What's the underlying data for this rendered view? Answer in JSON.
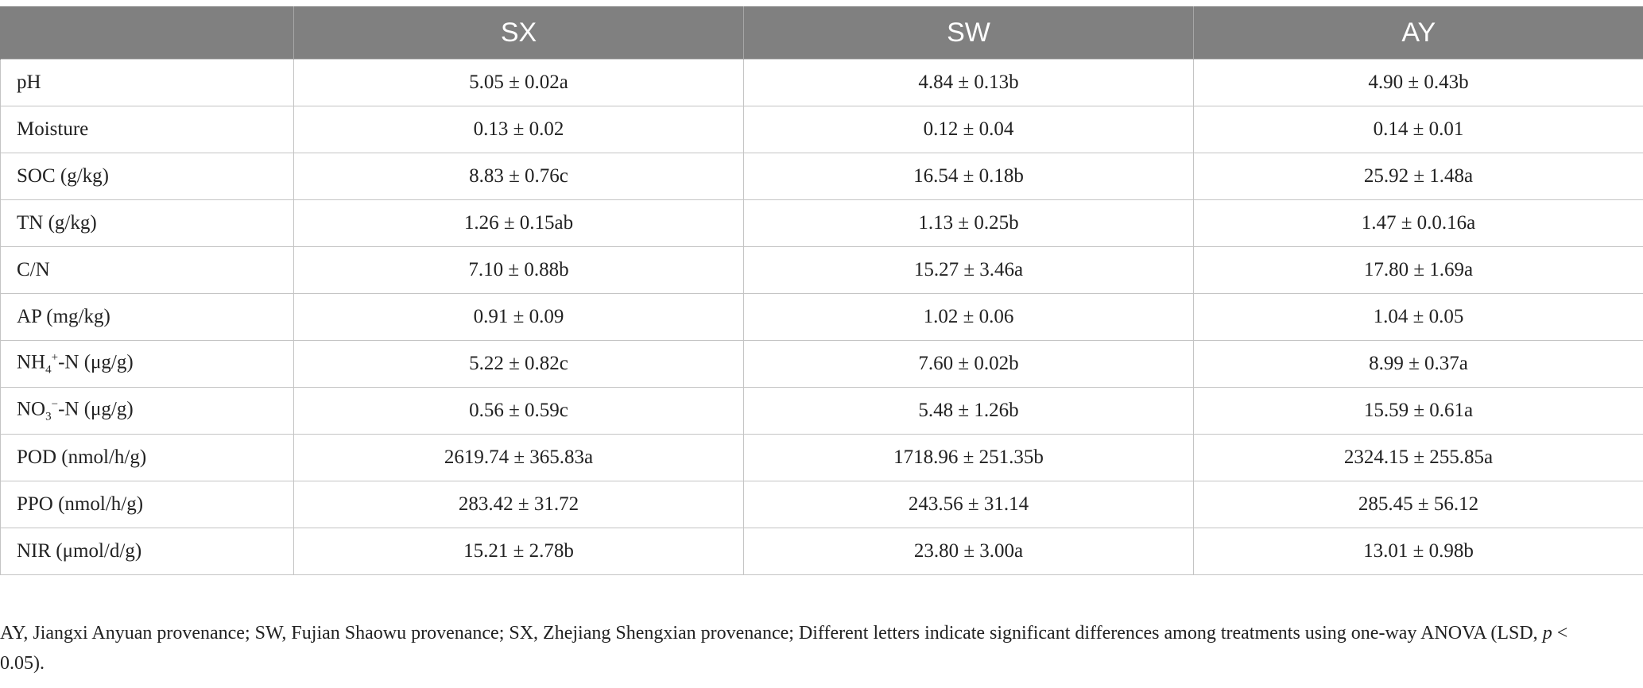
{
  "table": {
    "headers": [
      "",
      "SX",
      "SW",
      "AY"
    ],
    "rows": [
      {
        "label": "pH",
        "values": [
          "5.05 ± 0.02a",
          "4.84 ± 0.13b",
          "4.90 ± 0.43b"
        ]
      },
      {
        "label": "Moisture",
        "values": [
          "0.13 ± 0.02",
          "0.12 ± 0.04",
          "0.14 ± 0.01"
        ]
      },
      {
        "label": "SOC (g/kg)",
        "values": [
          "8.83 ± 0.76c",
          "16.54 ± 0.18b",
          "25.92 ± 1.48a"
        ]
      },
      {
        "label": "TN (g/kg)",
        "values": [
          "1.26 ± 0.15ab",
          "1.13 ± 0.25b",
          "1.47 ± 0.0.16a"
        ]
      },
      {
        "label": "C/N",
        "values": [
          "7.10 ± 0.88b",
          "15.27 ± 3.46a",
          "17.80 ± 1.69a"
        ]
      },
      {
        "label": "AP (mg/kg)",
        "values": [
          "0.91 ± 0.09",
          "1.02 ± 0.06",
          "1.04 ± 0.05"
        ]
      },
      {
        "label_parts": {
          "pre": "NH",
          "sub": "4",
          "sup": "+",
          "post": "-N (μg/g)"
        },
        "values": [
          "5.22 ± 0.82c",
          "7.60 ± 0.02b",
          "8.99 ± 0.37a"
        ]
      },
      {
        "label_parts": {
          "pre": "NO",
          "sub": "3",
          "sup": "−",
          "post": "-N (μg/g)"
        },
        "values": [
          "0.56 ± 0.59c",
          "5.48 ± 1.26b",
          "15.59 ± 0.61a"
        ]
      },
      {
        "label": "POD (nmol/h/g)",
        "values": [
          "2619.74 ± 365.83a",
          "1718.96 ± 251.35b",
          "2324.15 ± 255.85a"
        ]
      },
      {
        "label": "PPO (nmol/h/g)",
        "values": [
          "283.42 ± 31.72",
          "243.56 ± 31.14",
          "285.45 ± 56.12"
        ]
      },
      {
        "label": "NIR (μmol/d/g)",
        "values": [
          "15.21 ± 2.78b",
          "23.80 ± 3.00a",
          "13.01 ± 0.98b"
        ]
      }
    ]
  },
  "footnote": {
    "before": "AY, Jiangxi Anyuan provenance; SW, Fujian Shaowu provenance; SX, Zhejiang Shengxian provenance; Different letters indicate significant differences among treatments using one-way ANOVA (LSD, ",
    "italic": "p",
    "after": " < 0.05)."
  }
}
